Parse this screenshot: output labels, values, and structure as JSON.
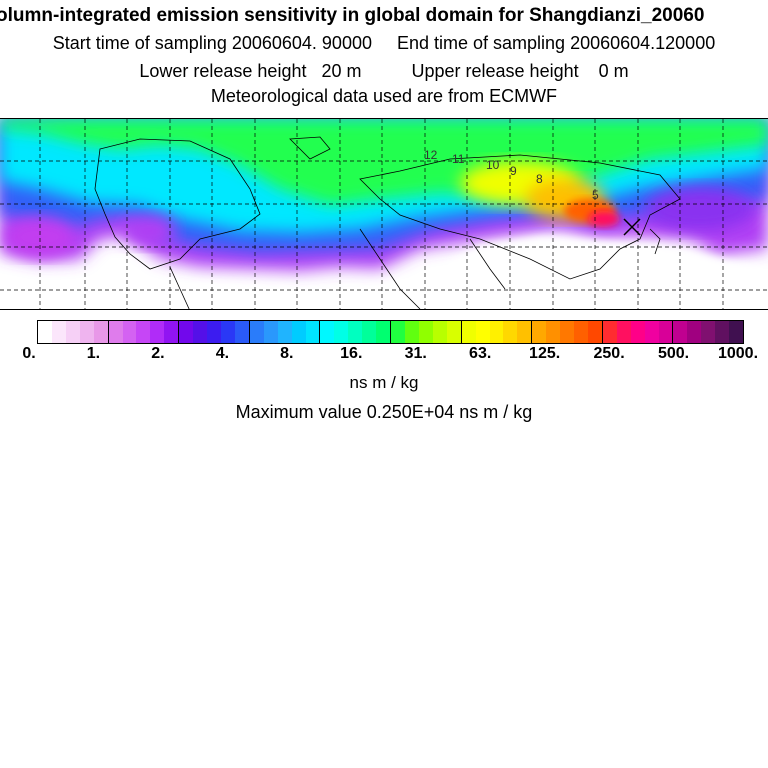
{
  "header": {
    "title": "olumn-integrated emission sensitivity in global domain for Shangdianzi_20060",
    "sampling_line": "Start time of sampling 20060604. 90000     End time of sampling 20060604.120000",
    "release_line": "Lower release height   20 m          Upper release height    0 m",
    "met_line": "Meteorological data used are from ECMWF"
  },
  "map": {
    "station_marker": "station-cross-icon",
    "contour_labels": [
      "12",
      "11",
      "10",
      "9",
      "8",
      "5"
    ]
  },
  "legend": {
    "ticks": [
      "0.",
      "1.",
      "2.",
      "4.",
      "8.",
      "16.",
      "31.",
      "63.",
      "125.",
      "250.",
      "500.",
      "1000."
    ],
    "colors": [
      "#ffffff",
      "#fbe6fb",
      "#f6d0f6",
      "#efb4ef",
      "#e898e8",
      "#df7cec",
      "#d462f2",
      "#c646f6",
      "#b02cf8",
      "#9114f2",
      "#7208ec",
      "#5410e8",
      "#3c1cf0",
      "#2a38f6",
      "#2a5af8",
      "#2a7cfa",
      "#2a98fc",
      "#20b4fe",
      "#00ccff",
      "#00e4ff",
      "#00f8ff",
      "#00ffe6",
      "#00ffc0",
      "#00ff9a",
      "#00ff70",
      "#20ff40",
      "#60ff10",
      "#90ff00",
      "#b8ff00",
      "#d8ff00",
      "#f0ff00",
      "#ffff00",
      "#fff000",
      "#ffd800",
      "#ffc000",
      "#ffa800",
      "#ff9000",
      "#ff7800",
      "#ff6000",
      "#ff4800",
      "#ff2c30",
      "#ff1060",
      "#ff0088",
      "#f000a0",
      "#d80098",
      "#c00090",
      "#a00080",
      "#801070",
      "#601060",
      "#401050"
    ],
    "unit": "ns m / kg",
    "max_value": "Maximum value  0.250E+04 ns m / kg"
  }
}
